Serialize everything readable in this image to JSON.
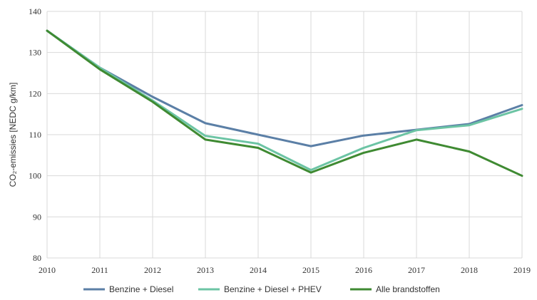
{
  "chart_data": {
    "type": "line",
    "ylabel": "CO₂-emissies [NEDC g/km]",
    "xlabel": "",
    "x": [
      "2010",
      "2011",
      "2012",
      "2013",
      "2014",
      "2015",
      "2016",
      "2017",
      "2018",
      "2019"
    ],
    "ylim": [
      80,
      140
    ],
    "yticks": [
      80,
      90,
      100,
      110,
      120,
      130,
      140
    ],
    "grid": true,
    "legend_position": "bottom",
    "series": [
      {
        "name": "Benzine + Diesel",
        "color": "#5b7fa6",
        "values": [
          135.3,
          126.3,
          119.2,
          112.8,
          110.0,
          107.2,
          109.8,
          111.2,
          112.6,
          117.2
        ]
      },
      {
        "name": "Benzine + Diesel + PHEV",
        "color": "#6cc4a4",
        "values": [
          135.3,
          126.3,
          118.3,
          109.7,
          107.8,
          101.4,
          106.8,
          111.1,
          112.3,
          116.3
        ]
      },
      {
        "name": "Alle brandstoffen",
        "color": "#3f8a32",
        "values": [
          135.3,
          125.9,
          118.0,
          108.8,
          106.8,
          100.8,
          105.6,
          108.8,
          105.9,
          100.0
        ]
      }
    ]
  }
}
